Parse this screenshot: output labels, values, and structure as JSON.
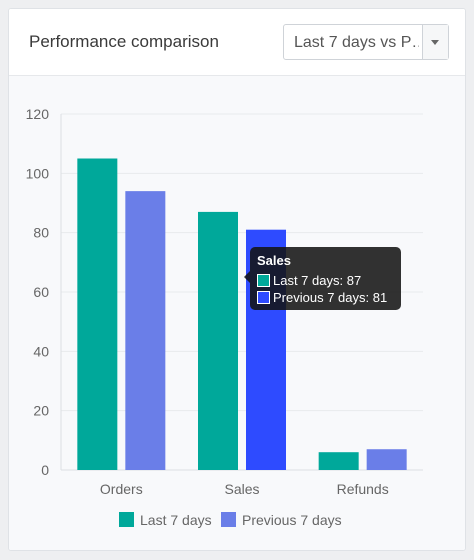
{
  "header": {
    "title": "Performance comparison",
    "range_select": {
      "value": "Last 7 days vs P…"
    }
  },
  "colors": {
    "last_7_days": "#00a89a",
    "previous_7_days": "#6a7ee8",
    "previous_7_days_highlight": "#2e4bff"
  },
  "chart_data": {
    "type": "bar",
    "categories": [
      "Orders",
      "Sales",
      "Refunds"
    ],
    "series": [
      {
        "name": "Last 7 days",
        "values": [
          105,
          87,
          6
        ]
      },
      {
        "name": "Previous 7 days",
        "values": [
          94,
          81,
          7
        ]
      }
    ],
    "yticks": [
      "0",
      "20",
      "40",
      "60",
      "80",
      "100",
      "120"
    ],
    "ylim": [
      0,
      120
    ],
    "grid": true,
    "legend": "bottom",
    "title": "",
    "xlabel": "",
    "ylabel": ""
  },
  "tooltip": {
    "title": "Sales",
    "rows": [
      {
        "label": "Last 7 days: 87"
      },
      {
        "label": "Previous 7 days: 81"
      }
    ]
  }
}
